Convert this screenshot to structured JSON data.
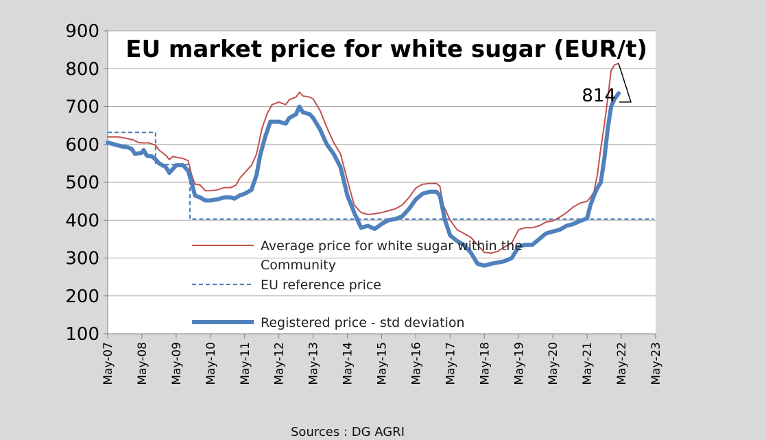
{
  "chart_data": {
    "type": "line",
    "title": "EU market price for white sugar (EUR/t)",
    "ylim": [
      100,
      900
    ],
    "yticks": [
      "100",
      "200",
      "300",
      "400",
      "500",
      "600",
      "700",
      "800",
      "900"
    ],
    "xticks": [
      "May-07",
      "May-08",
      "May-09",
      "May-10",
      "May-11",
      "May-12",
      "May-13",
      "May-14",
      "May-15",
      "May-16",
      "May-17",
      "May-18",
      "May-19",
      "May-20",
      "May-21",
      "May-22",
      "May-23"
    ],
    "grid": true,
    "legend_placement": "lower-center",
    "series": [
      {
        "name": "Average price for white sugar within the Community",
        "legend_lines": [
          "Average price for white sugar within the",
          "Community"
        ],
        "color": "#c0504d",
        "style": "thin",
        "points": [
          [
            0.0,
            620
          ],
          [
            0.3,
            620
          ],
          [
            0.5,
            617
          ],
          [
            0.75,
            612
          ],
          [
            0.9,
            605
          ],
          [
            1.0,
            604
          ],
          [
            1.2,
            604
          ],
          [
            1.4,
            598
          ],
          [
            1.5,
            585
          ],
          [
            1.7,
            571
          ],
          [
            1.8,
            560
          ],
          [
            1.9,
            568
          ],
          [
            2.0,
            566
          ],
          [
            2.2,
            563
          ],
          [
            2.35,
            557
          ],
          [
            2.45,
            520
          ],
          [
            2.55,
            495
          ],
          [
            2.7,
            493
          ],
          [
            2.85,
            478
          ],
          [
            3.0,
            478
          ],
          [
            3.2,
            480
          ],
          [
            3.4,
            486
          ],
          [
            3.6,
            486
          ],
          [
            3.75,
            493
          ],
          [
            3.85,
            510
          ],
          [
            4.0,
            525
          ],
          [
            4.2,
            545
          ],
          [
            4.35,
            575
          ],
          [
            4.5,
            640
          ],
          [
            4.65,
            680
          ],
          [
            4.8,
            705
          ],
          [
            5.0,
            712
          ],
          [
            5.2,
            705
          ],
          [
            5.3,
            718
          ],
          [
            5.5,
            725
          ],
          [
            5.6,
            738
          ],
          [
            5.7,
            728
          ],
          [
            5.9,
            725
          ],
          [
            6.0,
            720
          ],
          [
            6.2,
            690
          ],
          [
            6.4,
            645
          ],
          [
            6.6,
            605
          ],
          [
            6.8,
            575
          ],
          [
            7.0,
            505
          ],
          [
            7.2,
            440
          ],
          [
            7.4,
            420
          ],
          [
            7.6,
            415
          ],
          [
            7.8,
            417
          ],
          [
            8.0,
            420
          ],
          [
            8.2,
            425
          ],
          [
            8.4,
            430
          ],
          [
            8.6,
            440
          ],
          [
            8.8,
            460
          ],
          [
            9.0,
            485
          ],
          [
            9.2,
            495
          ],
          [
            9.4,
            497
          ],
          [
            9.6,
            497
          ],
          [
            9.7,
            490
          ],
          [
            9.8,
            440
          ],
          [
            10.0,
            400
          ],
          [
            10.2,
            375
          ],
          [
            10.4,
            365
          ],
          [
            10.6,
            355
          ],
          [
            10.8,
            335
          ],
          [
            11.0,
            315
          ],
          [
            11.2,
            313
          ],
          [
            11.4,
            318
          ],
          [
            11.6,
            330
          ],
          [
            11.8,
            340
          ],
          [
            12.0,
            375
          ],
          [
            12.2,
            380
          ],
          [
            12.4,
            380
          ],
          [
            12.6,
            385
          ],
          [
            12.8,
            395
          ],
          [
            13.0,
            398
          ],
          [
            13.2,
            408
          ],
          [
            13.4,
            420
          ],
          [
            13.6,
            435
          ],
          [
            13.8,
            445
          ],
          [
            14.0,
            450
          ],
          [
            14.1,
            460
          ],
          [
            14.2,
            475
          ],
          [
            14.3,
            520
          ],
          [
            14.4,
            590
          ],
          [
            14.5,
            650
          ],
          [
            14.6,
            720
          ],
          [
            14.7,
            795
          ],
          [
            14.8,
            810
          ],
          [
            14.92,
            814
          ]
        ]
      },
      {
        "name": "EU reference price",
        "color": "#4f81bd",
        "style": "dashed",
        "points": [
          [
            0.0,
            632
          ],
          [
            1.4,
            632
          ],
          [
            1.4,
            547
          ],
          [
            2.2,
            547
          ],
          [
            2.4,
            547
          ],
          [
            2.4,
            403
          ],
          [
            15.95,
            403
          ]
        ]
      },
      {
        "name": "Registered price - std deviation",
        "color": "#4f81bd",
        "style": "thick",
        "points": [
          [
            0.0,
            605
          ],
          [
            0.2,
            600
          ],
          [
            0.4,
            595
          ],
          [
            0.6,
            592
          ],
          [
            0.7,
            588
          ],
          [
            0.8,
            575
          ],
          [
            1.0,
            578
          ],
          [
            1.05,
            585
          ],
          [
            1.15,
            570
          ],
          [
            1.3,
            568
          ],
          [
            1.4,
            560
          ],
          [
            1.5,
            550
          ],
          [
            1.7,
            540
          ],
          [
            1.8,
            525
          ],
          [
            1.9,
            535
          ],
          [
            2.0,
            545
          ],
          [
            2.2,
            545
          ],
          [
            2.35,
            530
          ],
          [
            2.45,
            500
          ],
          [
            2.55,
            465
          ],
          [
            2.7,
            460
          ],
          [
            2.85,
            452
          ],
          [
            3.0,
            452
          ],
          [
            3.2,
            455
          ],
          [
            3.4,
            460
          ],
          [
            3.6,
            460
          ],
          [
            3.7,
            457
          ],
          [
            3.85,
            465
          ],
          [
            4.0,
            470
          ],
          [
            4.2,
            480
          ],
          [
            4.35,
            520
          ],
          [
            4.45,
            570
          ],
          [
            4.6,
            620
          ],
          [
            4.75,
            660
          ],
          [
            5.0,
            660
          ],
          [
            5.2,
            655
          ],
          [
            5.3,
            670
          ],
          [
            5.5,
            680
          ],
          [
            5.6,
            700
          ],
          [
            5.7,
            685
          ],
          [
            5.9,
            680
          ],
          [
            6.0,
            670
          ],
          [
            6.2,
            640
          ],
          [
            6.4,
            600
          ],
          [
            6.6,
            575
          ],
          [
            6.8,
            540
          ],
          [
            7.0,
            465
          ],
          [
            7.2,
            420
          ],
          [
            7.4,
            380
          ],
          [
            7.6,
            385
          ],
          [
            7.8,
            377
          ],
          [
            8.0,
            390
          ],
          [
            8.2,
            400
          ],
          [
            8.4,
            403
          ],
          [
            8.6,
            410
          ],
          [
            8.8,
            430
          ],
          [
            9.0,
            455
          ],
          [
            9.2,
            470
          ],
          [
            9.4,
            475
          ],
          [
            9.6,
            475
          ],
          [
            9.7,
            465
          ],
          [
            9.85,
            400
          ],
          [
            10.0,
            360
          ],
          [
            10.2,
            345
          ],
          [
            10.4,
            335
          ],
          [
            10.6,
            315
          ],
          [
            10.8,
            285
          ],
          [
            11.0,
            280
          ],
          [
            11.2,
            285
          ],
          [
            11.4,
            288
          ],
          [
            11.6,
            292
          ],
          [
            11.8,
            300
          ],
          [
            12.0,
            330
          ],
          [
            12.2,
            335
          ],
          [
            12.4,
            335
          ],
          [
            12.6,
            350
          ],
          [
            12.8,
            365
          ],
          [
            13.0,
            370
          ],
          [
            13.2,
            375
          ],
          [
            13.4,
            385
          ],
          [
            13.6,
            390
          ],
          [
            13.8,
            398
          ],
          [
            14.0,
            405
          ],
          [
            14.1,
            440
          ],
          [
            14.2,
            465
          ],
          [
            14.3,
            485
          ],
          [
            14.4,
            500
          ],
          [
            14.5,
            560
          ],
          [
            14.6,
            640
          ],
          [
            14.7,
            700
          ],
          [
            14.8,
            720
          ],
          [
            14.92,
            735
          ]
        ]
      }
    ],
    "annotations": [
      {
        "text": "814",
        "x": 14.92,
        "y": 814
      }
    ]
  },
  "source": "Sources : DG AGRI"
}
